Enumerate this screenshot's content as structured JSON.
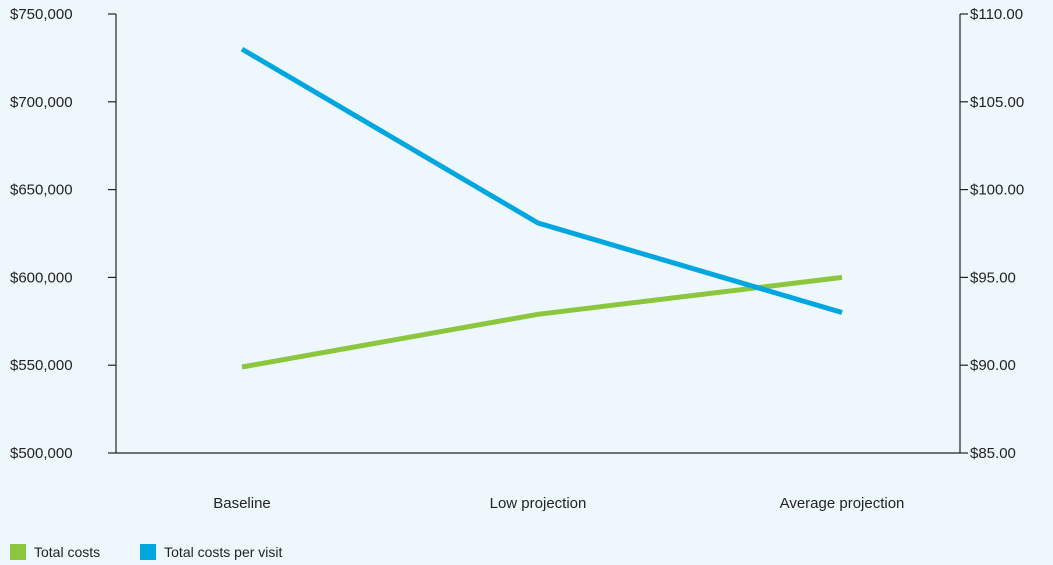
{
  "chart_data": {
    "type": "line",
    "categories": [
      "Baseline",
      "Low projection",
      "Average projection"
    ],
    "series": [
      {
        "name": "Total costs",
        "axis": "left",
        "color": "#8cc63f",
        "values": [
          549000,
          579000,
          600000
        ]
      },
      {
        "name": "Total costs per visit",
        "axis": "right",
        "color": "#00a6df",
        "values": [
          108.0,
          98.1,
          93.0
        ]
      }
    ],
    "left_axis": {
      "ylim": [
        500000,
        750000
      ],
      "ticks": [
        500000,
        550000,
        600000,
        650000,
        700000,
        750000
      ],
      "tick_labels": [
        "$500,000",
        "$550,000",
        "$600,000",
        "$650,000",
        "$700,000",
        "$750,000"
      ]
    },
    "right_axis": {
      "ylim": [
        85,
        110
      ],
      "ticks": [
        85,
        90,
        95,
        100,
        105,
        110
      ],
      "tick_labels": [
        "$85.00",
        "$90.00",
        "$95.00",
        "$100.00",
        "$105.00",
        "$110.00"
      ]
    },
    "title": "",
    "xlabel": "",
    "grid": false,
    "legend_placement": "bottom-left"
  }
}
